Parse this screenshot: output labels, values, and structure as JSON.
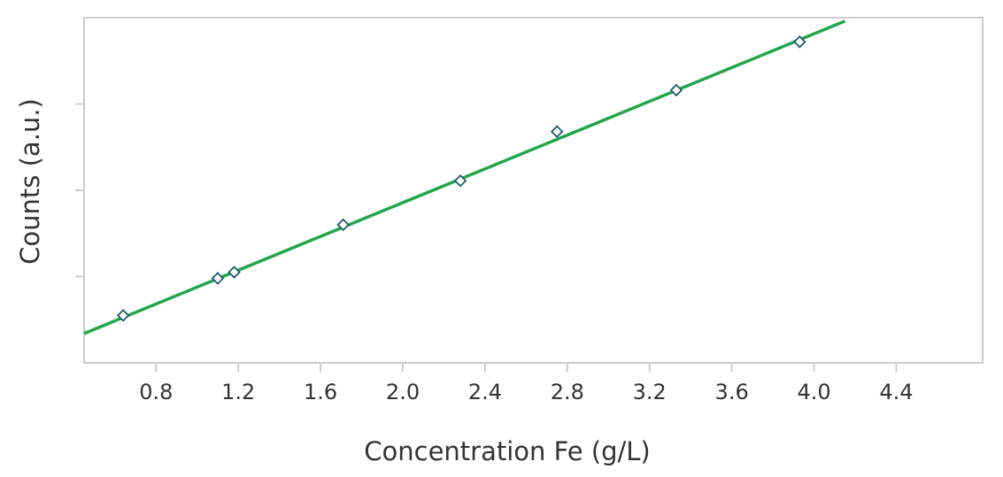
{
  "chart_data": {
    "type": "scatter",
    "x_label": "Concentration Fe (g/L)",
    "y_label": "Counts (a.u.)",
    "xlim": [
      0.45,
      4.82
    ],
    "ylim": [
      0,
      4
    ],
    "xticks": [
      0.8,
      1.2,
      1.6,
      {
        "value": 2,
        "label": "2.0"
      },
      2.4,
      2.8,
      3.2,
      3.6,
      {
        "value": 4,
        "label": "4.0"
      },
      4.4
    ],
    "yticks": [
      1,
      2,
      3
    ],
    "series": [
      {
        "color": "#1e5a6e",
        "marker": "diamond",
        "x": [
          0.64,
          1.1,
          1.18,
          1.71,
          2.28,
          2.75,
          3.33,
          3.93
        ],
        "values": [
          0.55,
          0.98,
          1.05,
          1.6,
          2.11,
          2.68,
          3.16,
          3.72
        ]
      }
    ],
    "fit": {
      "color": "#22a64a",
      "x": [
        0.45,
        4.15
      ],
      "values": [
        0.34,
        3.96
      ]
    }
  }
}
